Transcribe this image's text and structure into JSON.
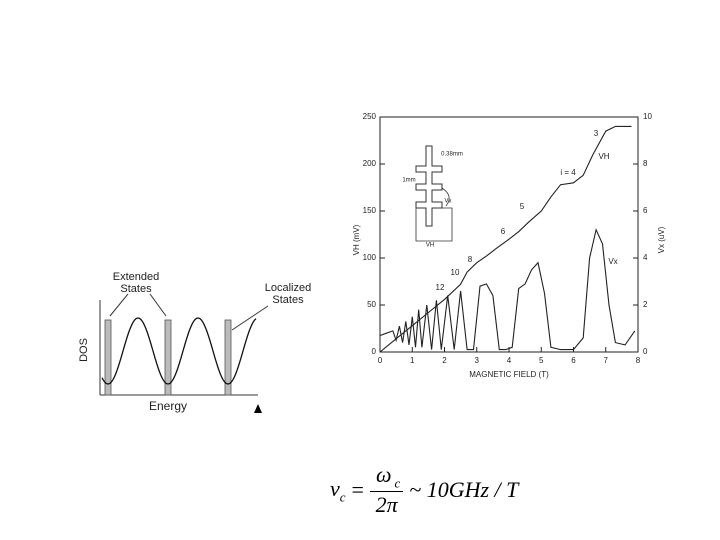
{
  "chart_data": [
    {
      "type": "line",
      "xlabel": "MAGNETIC FIELD (T)",
      "ylabel": "VH (mV)",
      "y2label": "Vx (uV)",
      "xlim": [
        0,
        8
      ],
      "xticks": [
        0,
        1,
        2,
        3,
        4,
        5,
        6,
        7,
        8
      ],
      "ylim": [
        0,
        250
      ],
      "yticks": [
        0,
        50,
        100,
        150,
        200,
        250
      ],
      "y2lim": [
        0,
        10
      ],
      "y2ticks": [
        0,
        2,
        4,
        6,
        8,
        10
      ],
      "series": [
        {
          "name": "VH",
          "color": "#222222",
          "x": [
            0,
            0.5,
            1,
            1.5,
            2,
            2.5,
            2.7,
            3.0,
            3.3,
            3.6,
            4.0,
            4.3,
            4.6,
            5.0,
            5.3,
            5.6,
            6.0,
            6.3,
            6.6,
            7.0,
            7.3,
            7.5,
            7.8
          ],
          "values": [
            0,
            14,
            28,
            42,
            56,
            72,
            85,
            95,
            102,
            110,
            120,
            128,
            138,
            150,
            165,
            178,
            180,
            188,
            210,
            235,
            240,
            240,
            240
          ]
        },
        {
          "name": "Vx",
          "color": "#222222",
          "axis": "y2",
          "x": [
            0,
            0.2,
            0.4,
            0.5,
            0.6,
            0.7,
            0.8,
            0.9,
            1.0,
            1.1,
            1.2,
            1.3,
            1.45,
            1.6,
            1.75,
            1.9,
            2.1,
            2.3,
            2.5,
            2.7,
            2.9,
            3.1,
            3.3,
            3.5,
            3.7,
            3.9,
            4.1,
            4.3,
            4.5,
            4.7,
            4.9,
            5.1,
            5.3,
            5.6,
            6.0,
            6.3,
            6.5,
            6.7,
            6.9,
            7.1,
            7.3,
            7.6,
            7.9
          ],
          "values": [
            0.7,
            0.8,
            0.9,
            0.5,
            1.1,
            0.4,
            1.3,
            0.3,
            1.5,
            0.2,
            1.8,
            0.2,
            2.0,
            0.1,
            2.2,
            0.1,
            2.4,
            0.1,
            2.6,
            0.1,
            0.1,
            2.8,
            2.9,
            2.4,
            0.1,
            0.1,
            0.2,
            2.7,
            2.9,
            3.5,
            3.8,
            2.5,
            0.2,
            0.1,
            0.1,
            0.6,
            4.0,
            5.2,
            4.6,
            2.0,
            0.4,
            0.3,
            0.9
          ]
        }
      ],
      "annotations": [
        "3",
        "i = 4",
        "5",
        "6",
        "8",
        "10",
        "12",
        "VH",
        "Vx",
        "0.38mm",
        "1mm",
        "Vx",
        "VH"
      ]
    }
  ],
  "dos_figure": {
    "extended": "Extended States",
    "localized": "Localized States",
    "ylabel": "DOS",
    "xlabel": "Energy"
  },
  "equation": {
    "lhs": "ν",
    "lhs_sub": "c",
    "equals": "=",
    "numerator": "ω",
    "numerator_sub": "c",
    "denominator": "2π",
    "rhs": "~ 10GHz / T"
  }
}
